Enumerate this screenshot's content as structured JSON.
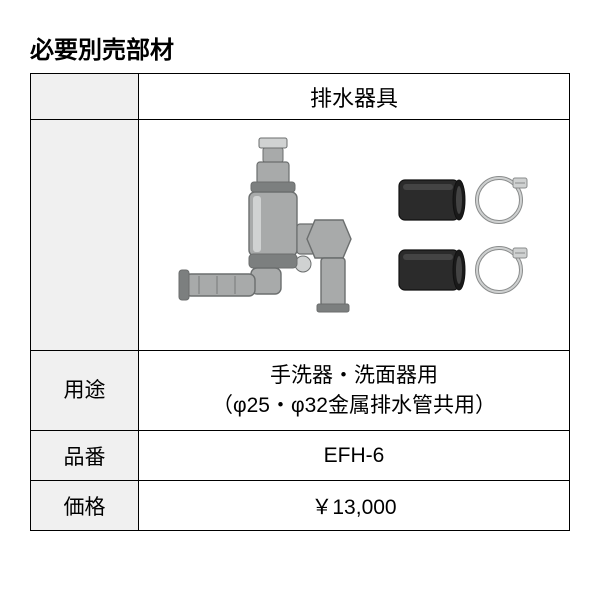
{
  "title": "必要別売部材",
  "table": {
    "header": "排水器具",
    "rows": [
      {
        "label": "用途",
        "value_line1": "手洗器・洗面器用",
        "value_line2": "（φ25・φ32金属排水管共用）"
      },
      {
        "label": "品番",
        "value": "EFH-6"
      },
      {
        "label": "価格",
        "value": "￥13,000"
      }
    ]
  },
  "image": {
    "bg": "#ffffff",
    "body_fill": "#a8aaaa",
    "body_stroke": "#6b6e6e",
    "dark_fill": "#2b2b2b",
    "dark_stroke": "#111111",
    "clamp_fill": "#cfd1d1",
    "clamp_stroke": "#8a8c8c",
    "highlight": "#d0d2d2",
    "shadow": "#7c7f7f"
  }
}
